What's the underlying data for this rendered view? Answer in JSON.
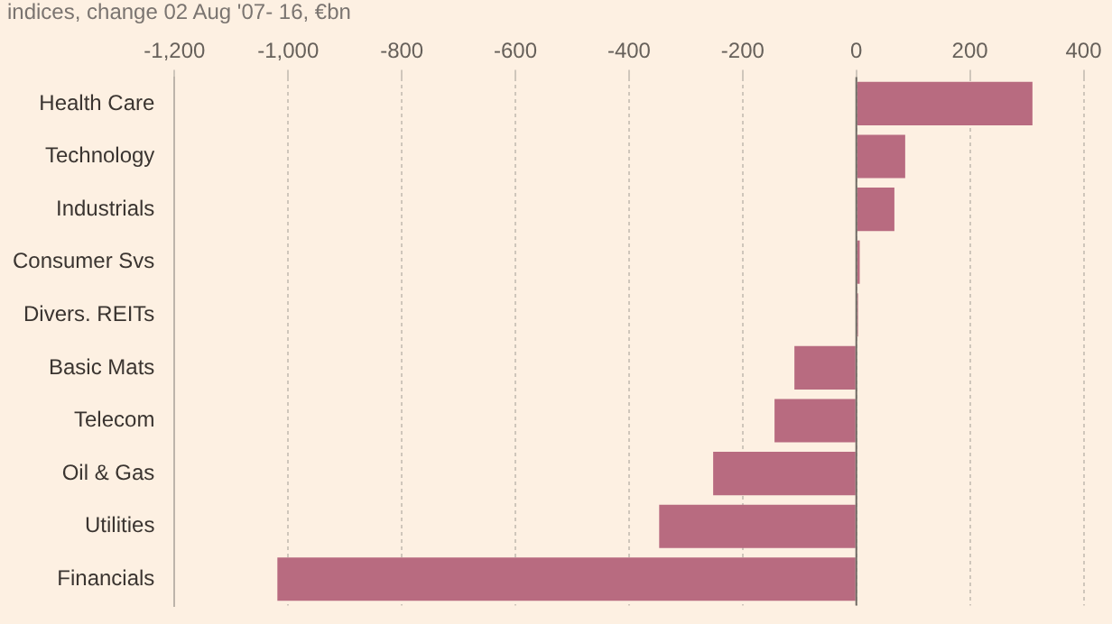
{
  "chart_data": {
    "type": "bar",
    "orientation": "horizontal",
    "subtitle": "indices, change 02 Aug '07- 16, €bn",
    "categories": [
      "Health Care",
      "Technology",
      "Industrials",
      "Consumer Svs",
      "Divers. REITs",
      "Basic Mats",
      "Telecom",
      "Oil & Gas",
      "Utilities",
      "Financials"
    ],
    "values": [
      310,
      86,
      67,
      6,
      3,
      -109,
      -144,
      -252,
      -347,
      -1019
    ],
    "color": "#b86b80",
    "xlim": [
      -1200,
      450
    ],
    "xticks": [
      {
        "value": -1200,
        "label": "-1,200"
      },
      {
        "value": -1000,
        "label": "-1,000"
      },
      -800,
      -600,
      -400,
      -200,
      0,
      200,
      400
    ],
    "grid": "x",
    "ref_lines": [
      {
        "axis": "x",
        "value": 0,
        "color": "#6f6a64"
      }
    ],
    "legend": false
  }
}
